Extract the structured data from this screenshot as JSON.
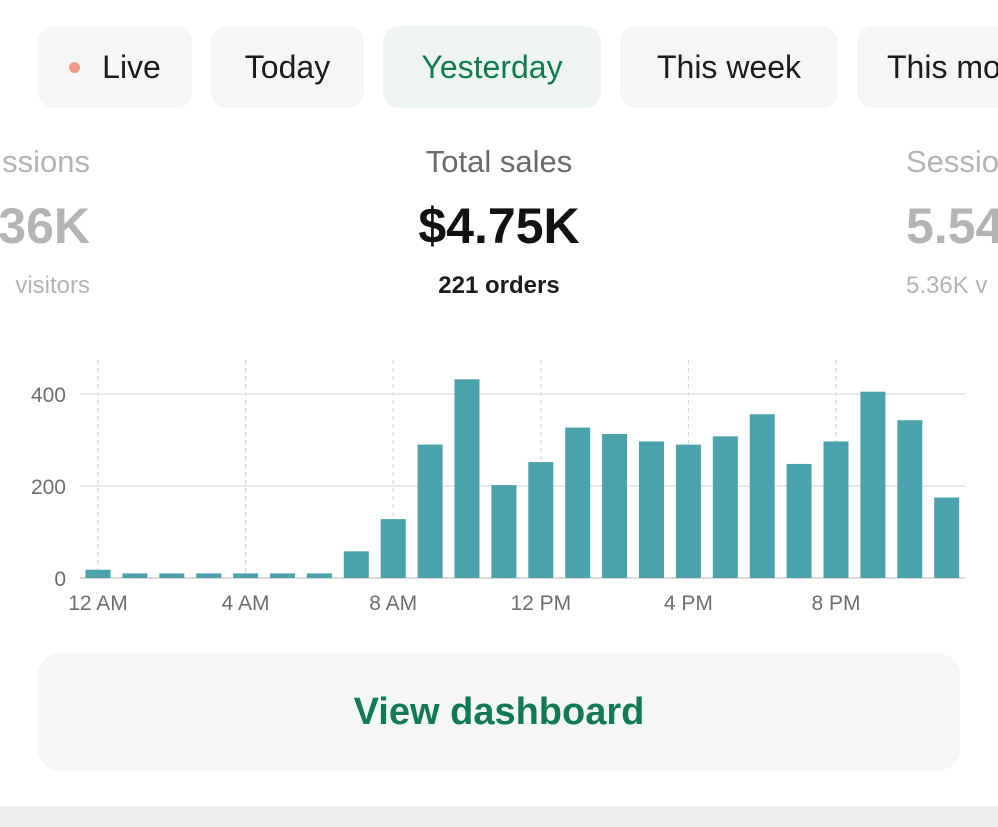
{
  "tabs": [
    {
      "label": "Live",
      "has_dot": true
    },
    {
      "label": "Today"
    },
    {
      "label": "Yesterday",
      "selected": true
    },
    {
      "label": "This week"
    },
    {
      "label": "This mo"
    }
  ],
  "metrics": {
    "left": {
      "label": "ssions",
      "value": "36K",
      "sub": "visitors"
    },
    "main": {
      "label": "Total sales",
      "value": "$4.75K",
      "sub": "221 orders"
    },
    "right": {
      "label": "Sessio",
      "value": "5.54",
      "sub": "5.36K v"
    }
  },
  "chart_data": {
    "type": "bar",
    "categories": [
      "12 AM",
      "1 AM",
      "2 AM",
      "3 AM",
      "4 AM",
      "5 AM",
      "6 AM",
      "7 AM",
      "8 AM",
      "9 AM",
      "10 AM",
      "11 AM",
      "12 PM",
      "1 PM",
      "2 PM",
      "3 PM",
      "4 PM",
      "5 PM",
      "6 PM",
      "7 PM",
      "8 PM",
      "9 PM",
      "10 PM",
      "11 PM"
    ],
    "values": [
      18,
      10,
      10,
      10,
      10,
      10,
      10,
      58,
      128,
      290,
      432,
      202,
      252,
      327,
      313,
      297,
      290,
      308,
      356,
      248,
      297,
      405,
      343,
      175
    ],
    "x_tick_labels": [
      "12 AM",
      "4 AM",
      "8 AM",
      "12 PM",
      "4 PM",
      "8 PM"
    ],
    "y_ticks": [
      0,
      200,
      400
    ],
    "ylim": [
      0,
      470
    ],
    "bar_color": "#4ba2ad",
    "grid": true
  },
  "cta": {
    "label": "View dashboard"
  },
  "colors": {
    "accent": "#117a52",
    "live_dot": "#ec9b86",
    "bar": "#4ba2ad"
  }
}
